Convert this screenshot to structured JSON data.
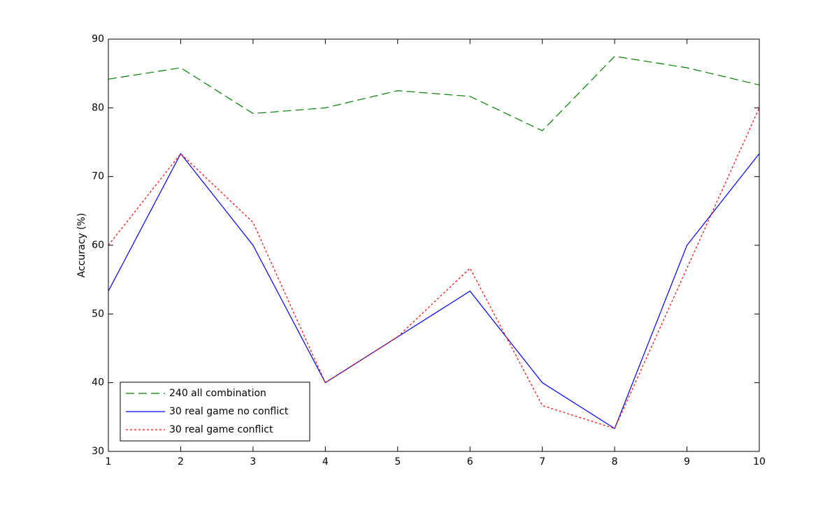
{
  "chart_data": {
    "type": "line",
    "ylabel": "Accuracy (%)",
    "x": [
      1,
      2,
      3,
      4,
      5,
      6,
      7,
      8,
      9,
      10
    ],
    "xlim": [
      1,
      10
    ],
    "xticks": [
      1,
      2,
      3,
      4,
      5,
      6,
      7,
      8,
      9,
      10
    ],
    "ylim": [
      30,
      90
    ],
    "yticks": [
      30,
      40,
      50,
      60,
      70,
      80,
      90
    ],
    "legend": "lower left",
    "series": [
      {
        "name": "240 all combination",
        "color": "#008000",
        "linestyle": "dashed",
        "values": [
          84.17,
          85.83,
          79.17,
          80,
          82.5,
          81.67,
          76.67,
          87.5,
          85.83,
          83.33
        ]
      },
      {
        "name": "30 real game no conflict",
        "color": "#0000ff",
        "linestyle": "solid",
        "values": [
          53.33,
          73.33,
          60,
          40,
          46.67,
          53.33,
          40,
          33.33,
          60,
          73.33
        ]
      },
      {
        "name": "30 real game conflict",
        "color": "#ff0000",
        "linestyle": "dotted",
        "values": [
          60,
          73.33,
          63.33,
          40,
          46.67,
          56.67,
          36.67,
          33.33,
          56.67,
          80
        ]
      }
    ]
  }
}
